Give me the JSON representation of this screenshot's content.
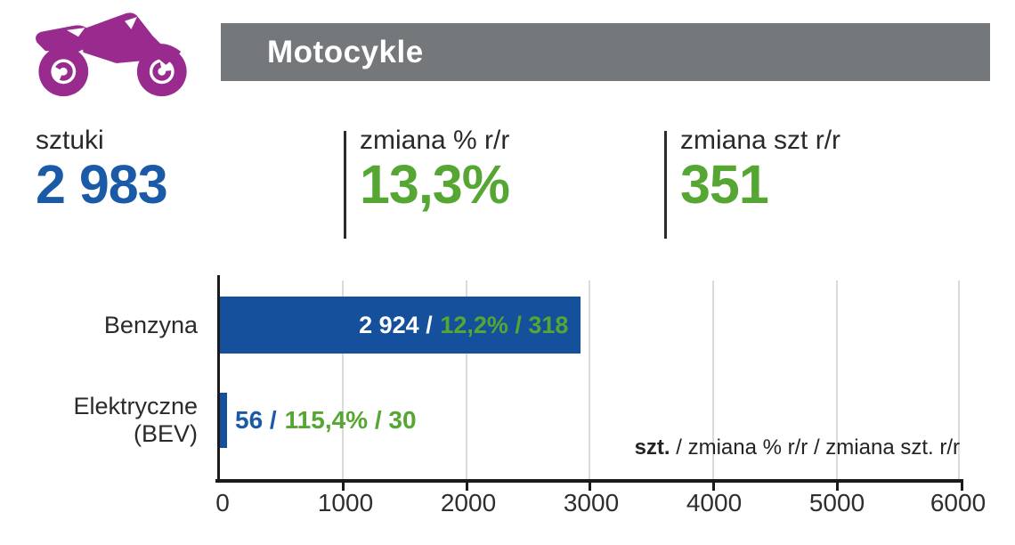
{
  "colors": {
    "purple": "#992B8F",
    "header_gray": "#75787B",
    "blue_text": "#1A5AA6",
    "bar_blue": "#15509C",
    "green": "#55A633",
    "text_dark": "#2B2A29",
    "grid_gray": "#DADADA",
    "axis_black": "#1A1A1A"
  },
  "header": {
    "title": "Motocykle",
    "icon": "motorcycle"
  },
  "stats": [
    {
      "label": "sztuki",
      "value": "2 983",
      "accent": "blue"
    },
    {
      "label": "zmiana % r/r",
      "value": "13,3%",
      "accent": "green"
    },
    {
      "label": "zmiana szt r/r",
      "value": "351",
      "accent": "green"
    }
  ],
  "chart_data": {
    "type": "bar",
    "orientation": "horizontal",
    "title": "",
    "xlabel": "",
    "ylabel": "",
    "xlim": [
      0,
      6000
    ],
    "xticks": [
      "0",
      "1000",
      "2000",
      "3000",
      "4000",
      "5000",
      "6000"
    ],
    "grid": "vertical",
    "categories": [
      "Benzyna",
      "Elektryczne (BEV)"
    ],
    "series": [
      {
        "name": "szt.",
        "values": [
          2924,
          56
        ]
      },
      {
        "name": "zmiana % r/r",
        "values": [
          12.2,
          115.4
        ]
      },
      {
        "name": "zmiana szt. r/r",
        "values": [
          318,
          30
        ]
      }
    ],
    "bars": [
      {
        "category": "Benzyna",
        "value_label": "2 924 /",
        "change_label": "12,2% / 318",
        "label_inside": true
      },
      {
        "category": "Elektryczne (BEV)",
        "value_label": "56 /",
        "change_label": "115,4% / 30",
        "label_inside": false
      }
    ],
    "note": {
      "bold": "szt.",
      "rest": " / zmiana % r/r / zmiana szt. r/r"
    }
  }
}
